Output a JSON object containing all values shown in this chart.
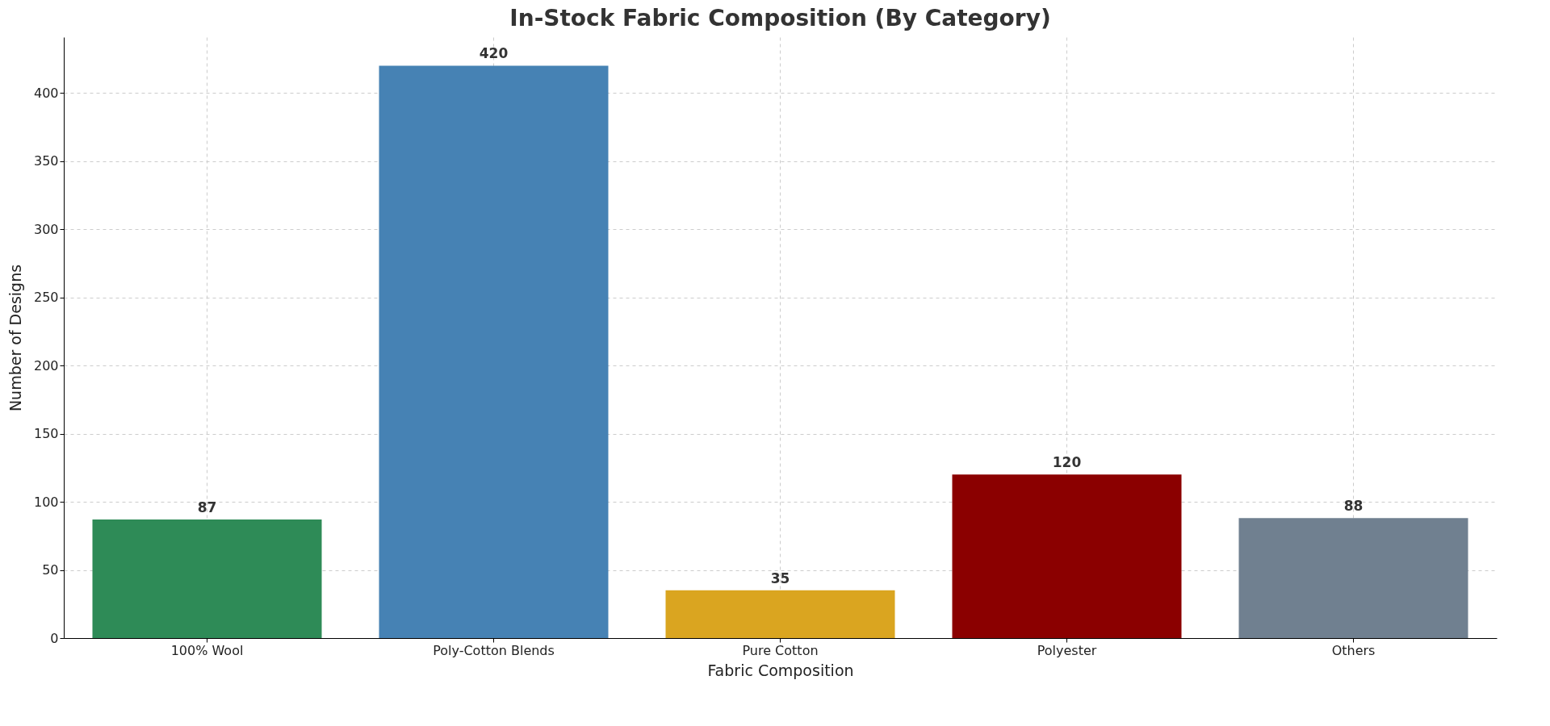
{
  "chart_data": {
    "type": "bar",
    "title": "In-Stock Fabric Composition (By Category)",
    "xlabel": "Fabric Composition",
    "ylabel": "Number of Designs",
    "categories": [
      "100% Wool",
      "Poly-Cotton Blends",
      "Pure Cotton",
      "Polyester",
      "Others"
    ],
    "values": [
      87,
      420,
      35,
      120,
      88
    ],
    "colors": [
      "#2e8b57",
      "#4682b4",
      "#daa520",
      "#8b0000",
      "#708090"
    ],
    "ylim": [
      0,
      441
    ],
    "yticks": [
      0,
      50,
      100,
      150,
      200,
      250,
      300,
      350,
      400
    ],
    "grid": true,
    "data_labels": true
  }
}
